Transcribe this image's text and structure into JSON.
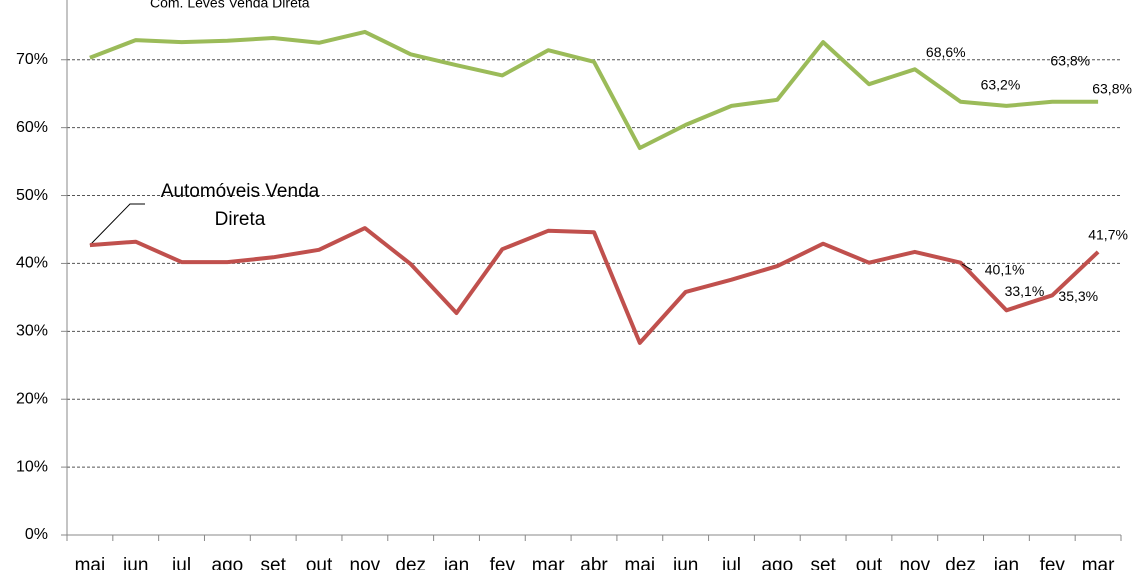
{
  "chart_data": {
    "type": "line",
    "categories": [
      "mai",
      "jun",
      "jul",
      "ago",
      "set",
      "out",
      "nov",
      "dez",
      "jan",
      "fev",
      "mar",
      "abr",
      "mai",
      "jun",
      "jul",
      "ago",
      "set",
      "out",
      "nov",
      "dez",
      "jan",
      "fev",
      "mar"
    ],
    "series": [
      {
        "name": "Com. Leves Venda Direta",
        "color": "#9bbb59",
        "values": [
          70.3,
          72.9,
          72.6,
          72.8,
          73.2,
          72.5,
          74.1,
          70.8,
          69.2,
          67.7,
          71.4,
          69.7,
          57.0,
          60.4,
          63.2,
          64.1,
          72.6,
          66.4,
          68.6,
          63.8,
          63.2,
          63.8,
          63.8
        ],
        "value_labels": [
          null,
          null,
          null,
          null,
          null,
          null,
          null,
          null,
          null,
          null,
          null,
          null,
          null,
          null,
          null,
          null,
          null,
          null,
          "68,6%",
          null,
          "63,2%",
          "63,8%",
          "63,8%"
        ]
      },
      {
        "name": "Automóveis Venda Direta",
        "color": "#c0504d",
        "values": [
          42.7,
          43.2,
          40.2,
          40.2,
          40.9,
          42.0,
          45.2,
          39.9,
          32.7,
          42.1,
          44.8,
          44.6,
          28.3,
          35.8,
          37.6,
          39.6,
          42.9,
          40.1,
          41.7,
          40.1,
          33.1,
          35.3,
          41.7
        ],
        "value_labels": [
          null,
          null,
          null,
          null,
          null,
          null,
          null,
          null,
          null,
          null,
          null,
          null,
          null,
          null,
          null,
          null,
          null,
          null,
          null,
          "40,1%",
          "33,1%",
          "35,3%",
          "41,7%"
        ]
      }
    ],
    "ylim": [
      0,
      78.8
    ],
    "yticks": [
      {
        "value": 0,
        "label": "0%"
      },
      {
        "value": 10,
        "label": "10%"
      },
      {
        "value": 20,
        "label": "20%"
      },
      {
        "value": 30,
        "label": "30%"
      },
      {
        "value": 40,
        "label": "40%"
      },
      {
        "value": 50,
        "label": "50%"
      },
      {
        "value": 60,
        "label": "60%"
      },
      {
        "value": 70,
        "label": "70%"
      }
    ],
    "grid": true
  }
}
